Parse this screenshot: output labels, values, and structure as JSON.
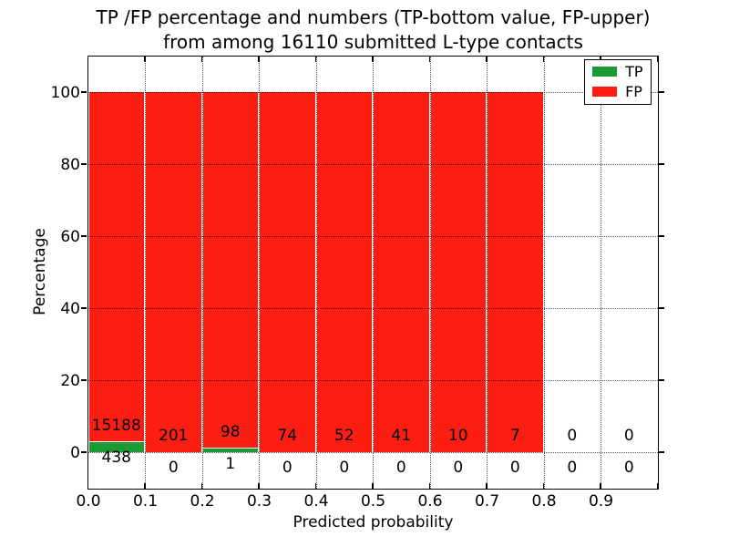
{
  "title": {
    "line1": "TP /FP percentage and numbers (TP-bottom value, FP-upper)",
    "line2": "from among 16110 submitted L-type contacts"
  },
  "axes": {
    "xlabel": "Predicted probability",
    "ylabel": "Percentage",
    "x_tick_labels": [
      "0.0",
      "0.1",
      "0.2",
      "0.3",
      "0.4",
      "0.5",
      "0.6",
      "0.7",
      "0.8",
      "0.9"
    ],
    "y_tick_labels": [
      "0",
      "20",
      "40",
      "60",
      "80",
      "100"
    ]
  },
  "legend": {
    "items": [
      {
        "label": "TP",
        "color": "#1d9a34"
      },
      {
        "label": "FP",
        "color": "#fc1d13"
      }
    ]
  },
  "colors": {
    "tp": "#1d9a34",
    "fp": "#fc1d13",
    "background": "#ffffff",
    "text": "#000000",
    "grid": "rgba(0,0,0,0.65)"
  },
  "chart_data": {
    "type": "bar",
    "stacked": true,
    "orientation": "vertical",
    "title": "TP /FP percentage and numbers (TP-bottom value, FP-upper) from among 16110 submitted L-type contacts",
    "xlabel": "Predicted probability",
    "ylabel": "Percentage",
    "xlim": [
      0.0,
      1.0
    ],
    "ylim": [
      -10,
      110
    ],
    "grid": "dotted",
    "legend_position": "upper right",
    "total_submitted": 16110,
    "bin_width": 0.1,
    "bin_edges": [
      0.0,
      0.1,
      0.2,
      0.3,
      0.4,
      0.5,
      0.6,
      0.7,
      0.8,
      0.9,
      1.0
    ],
    "categories": [
      "0.0-0.1",
      "0.1-0.2",
      "0.2-0.3",
      "0.3-0.4",
      "0.4-0.5",
      "0.5-0.6",
      "0.6-0.7",
      "0.7-0.8",
      "0.8-0.9",
      "0.9-1.0"
    ],
    "series": [
      {
        "name": "TP",
        "counts": [
          438,
          0,
          1,
          0,
          0,
          0,
          0,
          0,
          0,
          0
        ],
        "percentages": [
          2.8,
          0.0,
          1.0,
          0.0,
          0.0,
          0.0,
          0.0,
          0.0,
          0.0,
          0.0
        ]
      },
      {
        "name": "FP",
        "counts": [
          15188,
          201,
          98,
          74,
          52,
          41,
          10,
          7,
          0,
          0
        ],
        "percentages": [
          97.2,
          100.0,
          99.0,
          100.0,
          100.0,
          100.0,
          100.0,
          100.0,
          0.0,
          0.0
        ]
      }
    ]
  }
}
